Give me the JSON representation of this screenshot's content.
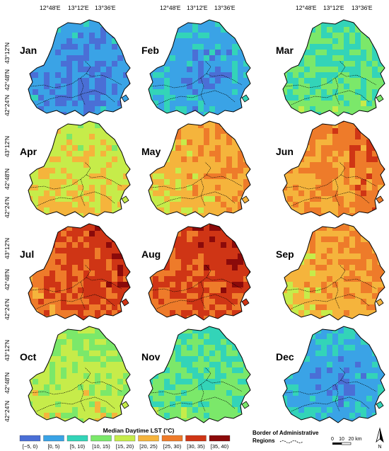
{
  "figure": {
    "top_lon_labels": [
      "12°48'E",
      "13°12'E",
      "13°36'E"
    ],
    "left_lat_labels": [
      "43°12'N",
      "42°48'N",
      "42°24'N"
    ]
  },
  "months": [
    {
      "name": "Jan",
      "level": 1.6
    },
    {
      "name": "Feb",
      "level": 2.0
    },
    {
      "name": "Mar",
      "level": 3.1
    },
    {
      "name": "Apr",
      "level": 4.8
    },
    {
      "name": "May",
      "level": 5.5
    },
    {
      "name": "Jun",
      "level": 6.2
    },
    {
      "name": "Jul",
      "level": 7.1
    },
    {
      "name": "Aug",
      "level": 7.2
    },
    {
      "name": "Sep",
      "level": 5.7
    },
    {
      "name": "Oct",
      "level": 4.2
    },
    {
      "name": "Nov",
      "level": 3.1
    },
    {
      "name": "Dec",
      "level": 2.0
    }
  ],
  "legend": {
    "title": "Median Daytime LST (°C)",
    "classes": [
      {
        "label": "[−5, 0)",
        "color": "#4a6fd6"
      },
      {
        "label": "[0, 5)",
        "color": "#3aa3e6"
      },
      {
        "label": "[5, 10)",
        "color": "#33d4b8"
      },
      {
        "label": "[10, 15)",
        "color": "#7be86a"
      },
      {
        "label": "[15, 20)",
        "color": "#c6ec4a"
      },
      {
        "label": "[20, 25)",
        "color": "#f5b43c"
      },
      {
        "label": "[25, 30)",
        "color": "#ee7b2a"
      },
      {
        "label": "[30, 35)",
        "color": "#cf3515"
      },
      {
        "label": "[35, 40)",
        "color": "#8b0a0a"
      }
    ]
  },
  "border_legend": {
    "label_line1": "Border of Administrative",
    "label_line2": "Regions"
  },
  "scale_bar": {
    "labels": [
      "0",
      "10",
      "20 km"
    ]
  },
  "north_arrow": {
    "label": "N",
    "icon": "north-arrow-icon"
  }
}
